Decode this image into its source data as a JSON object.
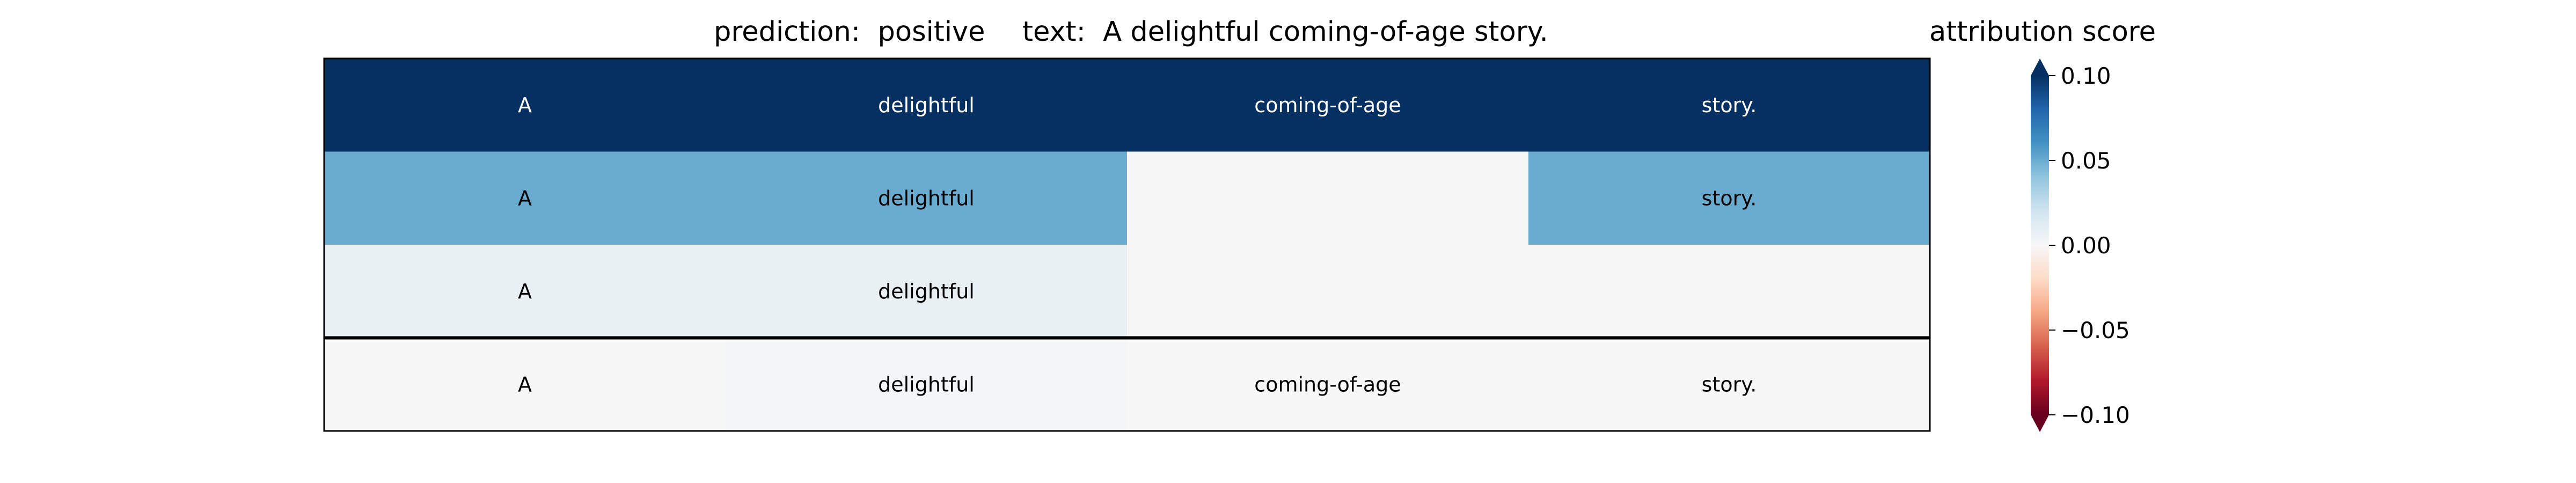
{
  "header": {
    "prediction_label": "prediction:",
    "prediction_value": "positive",
    "text_label": "text:",
    "text_value": "A delightful coming-of-age story.",
    "colorbar_title": "attribution score"
  },
  "chart_data": {
    "type": "heatmap",
    "columns": 4,
    "rows": [
      {
        "cells": [
          {
            "text": "A",
            "value": 0.1
          },
          {
            "text": "delightful",
            "value": 0.1
          },
          {
            "text": "coming-of-age",
            "value": 0.1
          },
          {
            "text": "story.",
            "value": 0.1
          }
        ]
      },
      {
        "cells": [
          {
            "text": "A",
            "value": 0.05
          },
          {
            "text": "delightful",
            "value": 0.05
          },
          {
            "text": "",
            "value": 0.0
          },
          {
            "text": "story.",
            "value": 0.05
          }
        ]
      },
      {
        "cells": [
          {
            "text": "A",
            "value": 0.008
          },
          {
            "text": "delightful",
            "value": 0.008
          },
          {
            "text": "",
            "value": 0.0
          },
          {
            "text": "",
            "value": 0.0
          }
        ]
      },
      {
        "cells": [
          {
            "text": "A",
            "value": 0.0
          },
          {
            "text": "delightful",
            "value": 0.002
          },
          {
            "text": "coming-of-age",
            "value": 0.0
          },
          {
            "text": "story.",
            "value": 0.0
          }
        ]
      }
    ],
    "separator_before_row": 3,
    "colorbar": {
      "cmap": "RdBu",
      "vmin": -0.1,
      "vmax": 0.1,
      "ticks": [
        0.1,
        0.05,
        0.0,
        -0.05,
        -0.1
      ],
      "tick_labels": [
        "0.10",
        "0.05",
        "0.00",
        "−0.05",
        "−0.10"
      ],
      "extend": "both"
    }
  }
}
